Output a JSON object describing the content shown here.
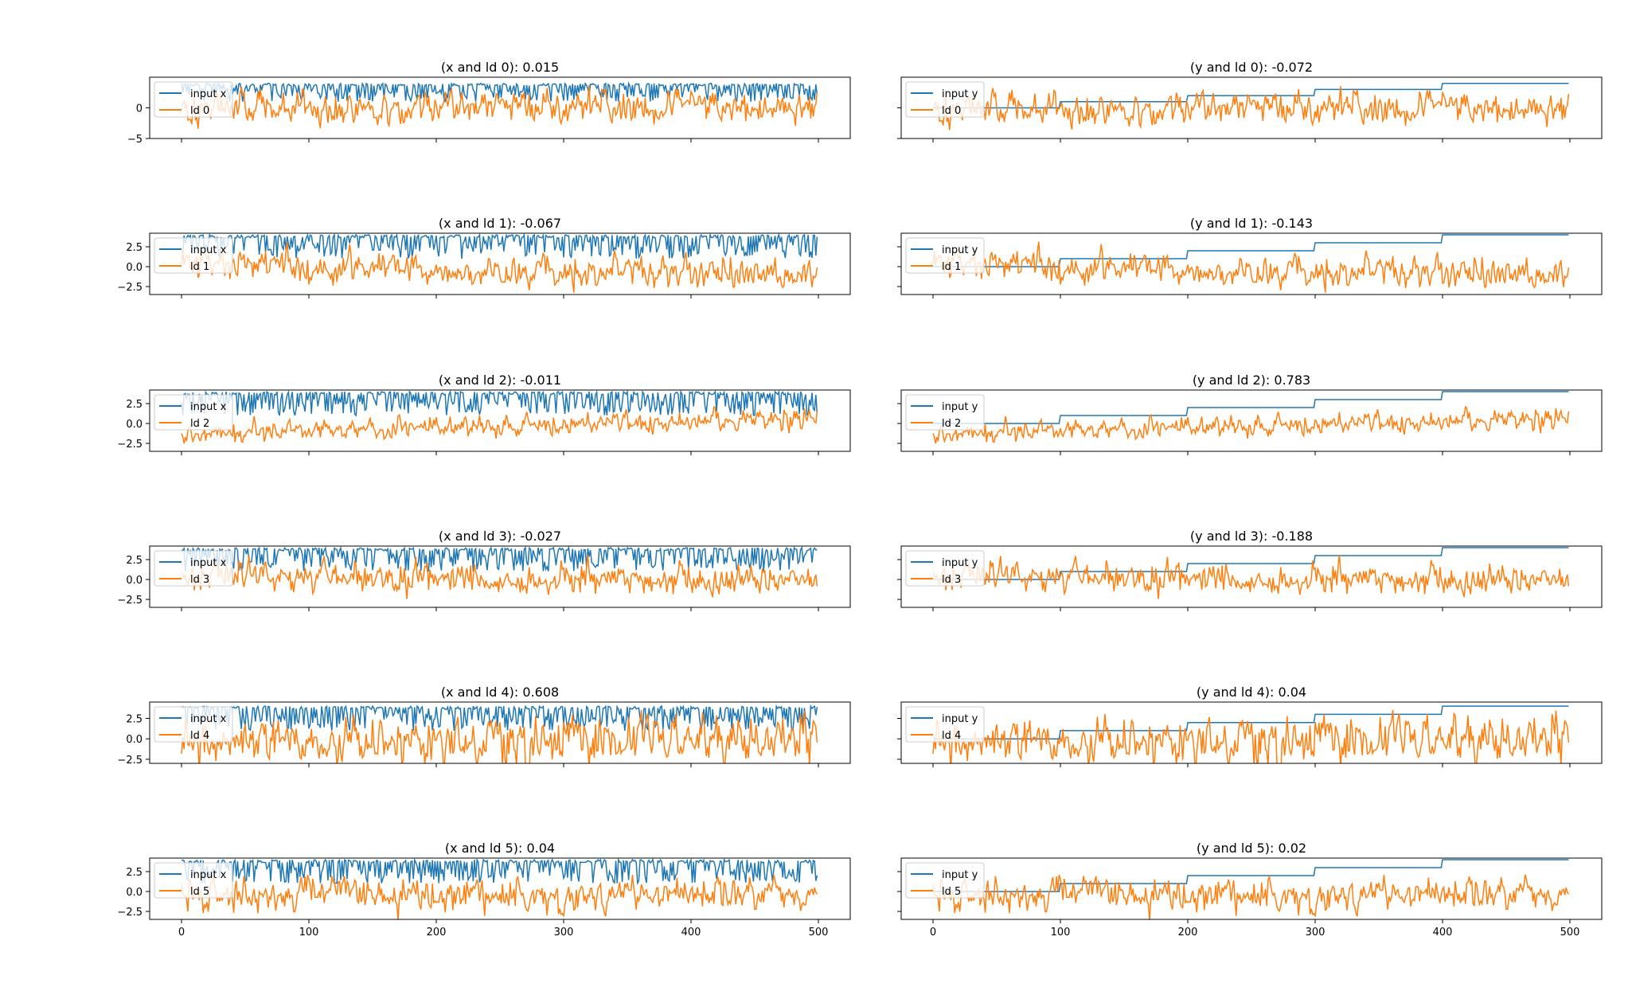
{
  "figure": {
    "background": "#ffffff"
  },
  "colors": {
    "input": "#1f77b4",
    "ld": "#ff7f0e"
  },
  "chart_data": [
    {
      "type": "line",
      "title": "(x and ld 0): 0.015",
      "column": "x",
      "ld": 0,
      "xlim": [
        -25,
        525
      ],
      "ylim": [
        -5,
        5
      ],
      "xticks": [
        0,
        100,
        200,
        300,
        400,
        500
      ],
      "xtick_labels": [],
      "yticks": [
        -5,
        0
      ],
      "ytick_labels": [
        "−5",
        "0"
      ],
      "legend_position": "upper left",
      "series": [
        {
          "name": "input x",
          "kind": "input_x"
        },
        {
          "name": "ld 0",
          "kind": "ld",
          "mean": 0.2,
          "amp": 1.3,
          "trend": 0
        }
      ]
    },
    {
      "type": "line",
      "title": "(y and ld 0): -0.072",
      "column": "y",
      "ld": 0,
      "xlim": [
        -25,
        525
      ],
      "ylim": [
        -5,
        5
      ],
      "xticks": [
        0,
        100,
        200,
        300,
        400,
        500
      ],
      "xtick_labels": [],
      "yticks": [
        -5,
        0
      ],
      "ytick_labels": [],
      "legend_position": "upper left",
      "series": [
        {
          "name": "input y",
          "kind": "input_y"
        },
        {
          "name": "ld 0",
          "kind": "ld",
          "mean": 0.0,
          "amp": 1.3,
          "trend": 0
        }
      ]
    },
    {
      "type": "line",
      "title": "(x and ld 1): -0.067",
      "column": "x",
      "ld": 1,
      "xlim": [
        -25,
        525
      ],
      "ylim": [
        -3.5,
        4.2
      ],
      "xticks": [
        0,
        100,
        200,
        300,
        400,
        500
      ],
      "xtick_labels": [],
      "yticks": [
        -2.5,
        0,
        2.5
      ],
      "ytick_labels": [
        "−2.5",
        "0.0",
        "2.5"
      ],
      "legend_position": "upper left",
      "series": [
        {
          "name": "input x",
          "kind": "input_x"
        },
        {
          "name": "ld 1",
          "kind": "ld",
          "mean": 0.3,
          "amp": 0.9,
          "trend": -1.2
        }
      ]
    },
    {
      "type": "line",
      "title": "(y and ld 1): -0.143",
      "column": "y",
      "ld": 1,
      "xlim": [
        -25,
        525
      ],
      "ylim": [
        -3.5,
        4.2
      ],
      "xticks": [
        0,
        100,
        200,
        300,
        400,
        500
      ],
      "xtick_labels": [],
      "yticks": [
        -2.5,
        0,
        2.5
      ],
      "ytick_labels": [],
      "legend_position": "upper left",
      "series": [
        {
          "name": "input y",
          "kind": "input_y"
        },
        {
          "name": "ld 1",
          "kind": "ld",
          "mean": 0.3,
          "amp": 0.9,
          "trend": -1.2
        }
      ]
    },
    {
      "type": "line",
      "title": "(x and ld 2): -0.011",
      "column": "x",
      "ld": 2,
      "xlim": [
        -25,
        525
      ],
      "ylim": [
        -3.5,
        4.2
      ],
      "xticks": [
        0,
        100,
        200,
        300,
        400,
        500
      ],
      "xtick_labels": [],
      "yticks": [
        -2.5,
        0,
        2.5
      ],
      "ytick_labels": [
        "−2.5",
        "0.0",
        "2.5"
      ],
      "legend_position": "upper left",
      "series": [
        {
          "name": "input x",
          "kind": "input_x"
        },
        {
          "name": "ld 2",
          "kind": "ld",
          "mean": -1.4,
          "amp": 0.6,
          "trend": 2.2
        }
      ]
    },
    {
      "type": "line",
      "title": "(y and ld 2): 0.783",
      "column": "y",
      "ld": 2,
      "xlim": [
        -25,
        525
      ],
      "ylim": [
        -3.5,
        4.2
      ],
      "xticks": [
        0,
        100,
        200,
        300,
        400,
        500
      ],
      "xtick_labels": [],
      "yticks": [
        -2.5,
        0,
        2.5
      ],
      "ytick_labels": [],
      "legend_position": "upper left",
      "series": [
        {
          "name": "input y",
          "kind": "input_y"
        },
        {
          "name": "ld 2",
          "kind": "ld",
          "mean": -1.4,
          "amp": 0.6,
          "trend": 2.2
        }
      ]
    },
    {
      "type": "line",
      "title": "(x and ld 3): -0.027",
      "column": "x",
      "ld": 3,
      "xlim": [
        -25,
        525
      ],
      "ylim": [
        -3.5,
        4.2
      ],
      "xticks": [
        0,
        100,
        200,
        300,
        400,
        500
      ],
      "xtick_labels": [],
      "yticks": [
        -2.5,
        0,
        2.5
      ],
      "ytick_labels": [
        "−2.5",
        "0.0",
        "2.5"
      ],
      "legend_position": "upper left",
      "series": [
        {
          "name": "input x",
          "kind": "input_x"
        },
        {
          "name": "ld 3",
          "kind": "ld",
          "mean": 0.3,
          "amp": 0.9,
          "trend": -0.2
        }
      ]
    },
    {
      "type": "line",
      "title": "(y and ld 3): -0.188",
      "column": "y",
      "ld": 3,
      "xlim": [
        -25,
        525
      ],
      "ylim": [
        -3.5,
        4.2
      ],
      "xticks": [
        0,
        100,
        200,
        300,
        400,
        500
      ],
      "xtick_labels": [],
      "yticks": [
        -2.5,
        0,
        2.5
      ],
      "ytick_labels": [],
      "legend_position": "upper left",
      "series": [
        {
          "name": "input y",
          "kind": "input_y"
        },
        {
          "name": "ld 3",
          "kind": "ld",
          "mean": 0.3,
          "amp": 0.9,
          "trend": -0.2
        }
      ]
    },
    {
      "type": "line",
      "title": "(x and ld 4): 0.608",
      "column": "x",
      "ld": 4,
      "xlim": [
        -25,
        525
      ],
      "ylim": [
        -3.0,
        4.5
      ],
      "xticks": [
        0,
        100,
        200,
        300,
        400,
        500
      ],
      "xtick_labels": [],
      "yticks": [
        -2.5,
        0,
        2.5
      ],
      "ytick_labels": [
        "−2.5",
        "0.0",
        "2.5"
      ],
      "legend_position": "upper left",
      "series": [
        {
          "name": "input x",
          "kind": "input_x"
        },
        {
          "name": "ld 4",
          "kind": "ld",
          "mean": -0.3,
          "amp": 1.4,
          "trend": 0.4
        }
      ]
    },
    {
      "type": "line",
      "title": "(y and ld 4): 0.04",
      "column": "y",
      "ld": 4,
      "xlim": [
        -25,
        525
      ],
      "ylim": [
        -3.0,
        4.5
      ],
      "xticks": [
        0,
        100,
        200,
        300,
        400,
        500
      ],
      "xtick_labels": [],
      "yticks": [
        -2.5,
        0,
        2.5
      ],
      "ytick_labels": [],
      "legend_position": "upper left",
      "series": [
        {
          "name": "input y",
          "kind": "input_y"
        },
        {
          "name": "ld 4",
          "kind": "ld",
          "mean": -0.3,
          "amp": 1.4,
          "trend": 0.4
        }
      ]
    },
    {
      "type": "line",
      "title": "(x and ld 5): 0.04",
      "column": "x",
      "ld": 5,
      "xlim": [
        -25,
        525
      ],
      "ylim": [
        -3.5,
        4.2
      ],
      "xticks": [
        0,
        100,
        200,
        300,
        400,
        500
      ],
      "xtick_labels": [
        "0",
        "100",
        "200",
        "300",
        "400",
        "500"
      ],
      "yticks": [
        -2.5,
        0,
        2.5
      ],
      "ytick_labels": [
        "−2.5",
        "0.0",
        "2.5"
      ],
      "legend_position": "upper left",
      "series": [
        {
          "name": "input x",
          "kind": "input_x"
        },
        {
          "name": "ld 5",
          "kind": "ld",
          "mean": -0.6,
          "amp": 1.0,
          "trend": 0.2
        }
      ]
    },
    {
      "type": "line",
      "title": "(y and ld 5): 0.02",
      "column": "y",
      "ld": 5,
      "xlim": [
        -25,
        525
      ],
      "ylim": [
        -3.5,
        4.2
      ],
      "xticks": [
        0,
        100,
        200,
        300,
        400,
        500
      ],
      "xtick_labels": [
        "0",
        "100",
        "200",
        "300",
        "400",
        "500"
      ],
      "yticks": [
        -2.5,
        0,
        2.5
      ],
      "ytick_labels": [],
      "legend_position": "upper left",
      "series": [
        {
          "name": "input y",
          "kind": "input_y"
        },
        {
          "name": "ld 5",
          "kind": "ld",
          "mean": -0.6,
          "amp": 1.0,
          "trend": 0.2
        }
      ]
    }
  ]
}
